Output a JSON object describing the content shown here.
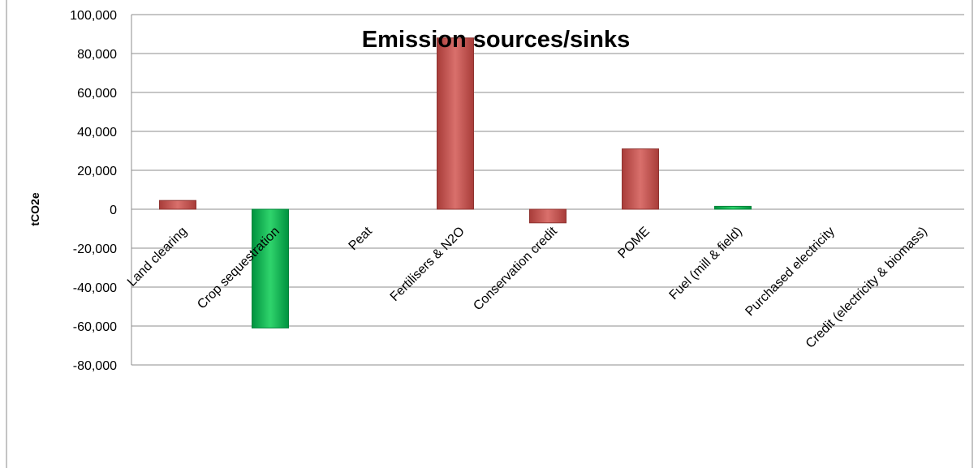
{
  "chart_data": {
    "type": "bar",
    "title": "Emission sources/sinks",
    "ylabel": "tCO2e",
    "xlabel": "",
    "ylim": [
      -80000,
      100000
    ],
    "ytick_values": [
      100000,
      80000,
      60000,
      40000,
      20000,
      0,
      -20000,
      -40000,
      -60000,
      -80000
    ],
    "ytick_labels": [
      "100,000",
      "80,000",
      "60,000",
      "40,000",
      "20,000",
      "0",
      "-20,000",
      "-40,000",
      "-60,000",
      "-80,000"
    ],
    "grid": true,
    "legend": "none",
    "categories": [
      "Land clearing",
      "Crop sequestration",
      "Peat",
      "Fertilisers & N2O",
      "Conservation credit",
      "POME",
      "Fuel (mill & field)",
      "Purchased electricity",
      "Credit (electricity & biomass)"
    ],
    "values": [
      4500,
      -61000,
      0,
      88000,
      -7000,
      31000,
      1500,
      0,
      0
    ],
    "bar_colors": [
      "#c0504d",
      "#00b050",
      "#c0504d",
      "#c0504d",
      "#c0504d",
      "#c0504d",
      "#2ecc71",
      "#c0504d",
      "#c0504d"
    ]
  }
}
